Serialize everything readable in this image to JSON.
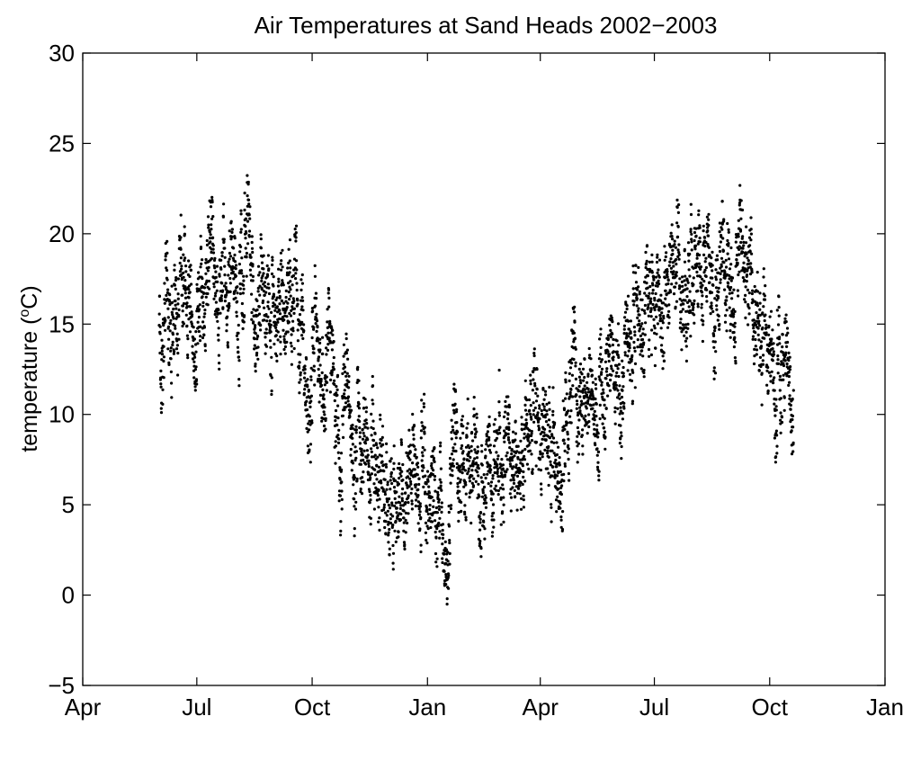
{
  "chart_data": {
    "type": "scatter",
    "title": "Air Temperatures at Sand Heads 2002−2003",
    "xlabel": "",
    "ylabel": "temperature (",
    "ylabel_sup": "o",
    "ylabel_end": "C)",
    "x_tick_labels": [
      "Apr",
      "Jul",
      "Oct",
      "Jan",
      "Apr",
      "Jul",
      "Oct",
      "Jan"
    ],
    "x_tick_dates": [
      "2002-04-01",
      "2002-07-01",
      "2002-10-01",
      "2003-01-01",
      "2003-04-01",
      "2003-07-01",
      "2003-10-01",
      "2004-01-01"
    ],
    "xlim": [
      "2002-04-01",
      "2004-01-01"
    ],
    "ylim": [
      -5,
      30
    ],
    "y_ticks": [
      -5,
      0,
      5,
      10,
      15,
      20,
      25,
      30
    ],
    "y_tick_labels": [
      "−5",
      "0",
      "5",
      "10",
      "15",
      "20",
      "25",
      "30"
    ],
    "grid": false,
    "marker_color": "#000000",
    "data_range": [
      "2002-06-01",
      "2003-10-20"
    ],
    "seasonal_curve": [
      {
        "date": "2002-06-01",
        "temp": 13.8
      },
      {
        "date": "2002-06-20",
        "temp": 15.2
      },
      {
        "date": "2002-07-10",
        "temp": 17.3
      },
      {
        "date": "2002-08-05",
        "temp": 17.2
      },
      {
        "date": "2002-08-25",
        "temp": 16.8
      },
      {
        "date": "2002-09-15",
        "temp": 14.6
      },
      {
        "date": "2002-10-01",
        "temp": 12.0
      },
      {
        "date": "2002-10-20",
        "temp": 10.0
      },
      {
        "date": "2002-11-10",
        "temp": 8.3
      },
      {
        "date": "2002-12-01",
        "temp": 6.5
      },
      {
        "date": "2003-01-01",
        "temp": 5.8
      },
      {
        "date": "2003-01-20",
        "temp": 6.5
      },
      {
        "date": "2003-02-10",
        "temp": 5.8
      },
      {
        "date": "2003-03-01",
        "temp": 6.8
      },
      {
        "date": "2003-03-20",
        "temp": 7.8
      },
      {
        "date": "2003-04-15",
        "temp": 9.0
      },
      {
        "date": "2003-05-10",
        "temp": 11.0
      },
      {
        "date": "2003-06-01",
        "temp": 13.5
      },
      {
        "date": "2003-06-20",
        "temp": 15.2
      },
      {
        "date": "2003-07-15",
        "temp": 17.5
      },
      {
        "date": "2003-08-10",
        "temp": 18.2
      },
      {
        "date": "2003-09-01",
        "temp": 17.0
      },
      {
        "date": "2003-09-20",
        "temp": 14.8
      },
      {
        "date": "2003-10-20",
        "temp": 12.8
      }
    ]
  }
}
